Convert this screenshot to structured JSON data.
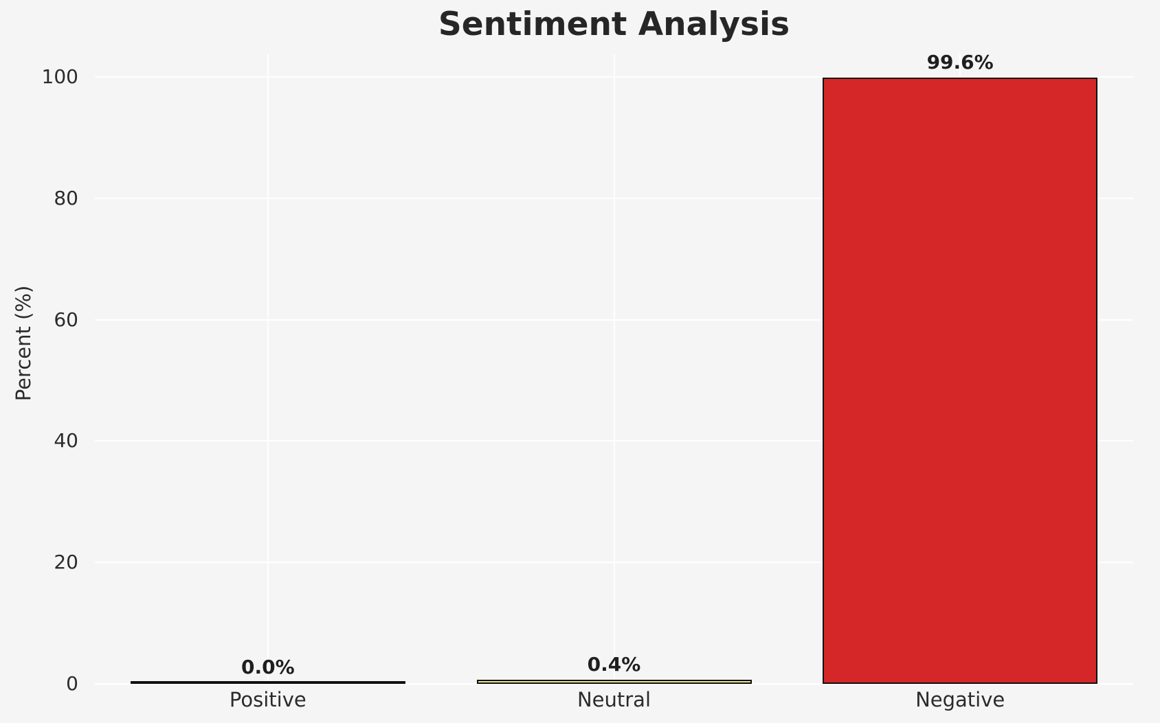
{
  "title": "Sentiment Analysis",
  "chart_data": {
    "type": "bar",
    "title": "Sentiment Analysis",
    "xlabel": "",
    "ylabel": "Percent (%)",
    "categories": [
      "Positive",
      "Neutral",
      "Negative"
    ],
    "values": [
      0.0,
      0.4,
      99.6
    ],
    "value_labels": [
      "0.0%",
      "0.4%",
      "99.6%"
    ],
    "bar_colors": [
      "#2ca02c",
      "#f0e68c",
      "#d62728"
    ],
    "bar_edge_color": "#0f0f0f",
    "yticks": [
      0,
      20,
      40,
      60,
      80,
      100
    ],
    "ylim": [
      0,
      103.8
    ],
    "grid": true,
    "grid_color": "#ffffff",
    "background_color": "#f5f5f6",
    "legend": false
  }
}
